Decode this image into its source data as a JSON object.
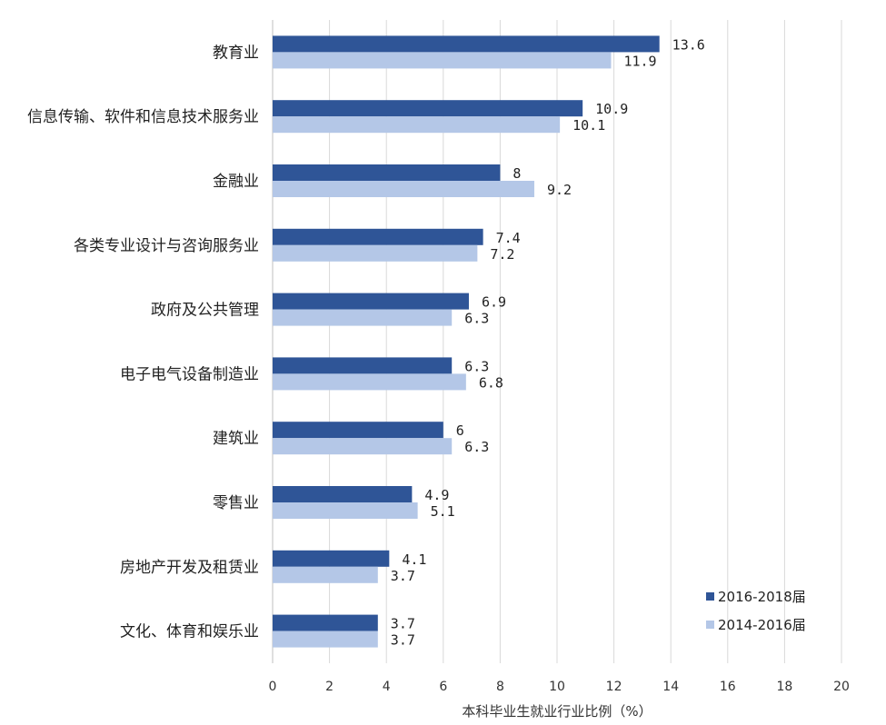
{
  "chart_data": {
    "type": "bar",
    "orientation": "horizontal",
    "categories": [
      "教育业",
      "信息传输、软件和信息技术服务业",
      "金融业",
      "各类专业设计与咨询服务业",
      "政府及公共管理",
      "电子电气设备制造业",
      "建筑业",
      "零售业",
      "房地产开发及租赁业",
      "文化、体育和娱乐业"
    ],
    "series": [
      {
        "name": "2016-2018届",
        "color": "#2f5597",
        "values": [
          13.6,
          10.9,
          8,
          7.4,
          6.9,
          6.3,
          6,
          4.9,
          4.1,
          3.7
        ]
      },
      {
        "name": "2014-2016届",
        "color": "#b4c7e7",
        "values": [
          11.9,
          10.1,
          9.2,
          7.2,
          6.3,
          6.8,
          6.3,
          5.1,
          3.7,
          3.7
        ]
      }
    ],
    "xlabel": "本科毕业生就业行业比例（%）",
    "xlim": [
      0,
      20
    ],
    "xticks": [
      0,
      2,
      4,
      6,
      8,
      10,
      12,
      14,
      16,
      18,
      20
    ],
    "grid": true,
    "legend": "bottom-right"
  }
}
